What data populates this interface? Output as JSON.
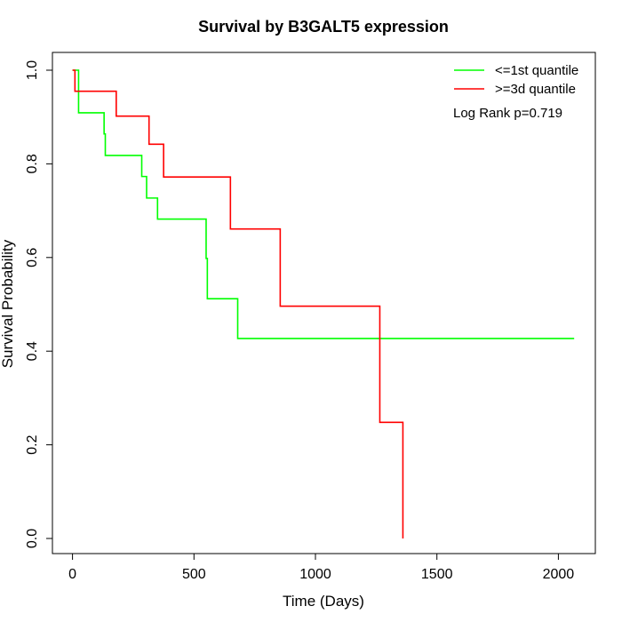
{
  "chart_data": {
    "type": "line",
    "step": true,
    "title": "Survival by B3GALT5 expression",
    "xlabel": "Time (Days)",
    "ylabel": "Survival Probability",
    "xlim": [
      0,
      2070
    ],
    "ylim": [
      0,
      1
    ],
    "xticks": [
      0,
      500,
      1000,
      1500,
      2000
    ],
    "yticks": [
      0.0,
      0.2,
      0.4,
      0.6,
      0.8,
      1.0
    ],
    "xtick_labels": [
      "0",
      "500",
      "1000",
      "1500",
      "2000"
    ],
    "ytick_labels": [
      "0.0",
      "0.2",
      "0.4",
      "0.6",
      "0.8",
      "1.0"
    ],
    "grid": false,
    "legend_position": "top-right",
    "annotation": "Log Rank p=0.719",
    "series": [
      {
        "name": "<=1st quantile",
        "color": "#00ff00",
        "x": [
          0,
          25,
          130,
          135,
          285,
          305,
          350,
          550,
          555,
          680,
          2065
        ],
        "y": [
          1.0,
          0.909,
          0.864,
          0.818,
          0.773,
          0.727,
          0.682,
          0.598,
          0.512,
          0.427,
          0.427
        ]
      },
      {
        "name": ">=3d quantile",
        "color": "#ff0000",
        "x": [
          0,
          10,
          180,
          315,
          375,
          650,
          855,
          1265,
          1360
        ],
        "y": [
          1.0,
          0.955,
          0.902,
          0.842,
          0.772,
          0.661,
          0.496,
          0.248,
          0.0
        ]
      }
    ]
  }
}
